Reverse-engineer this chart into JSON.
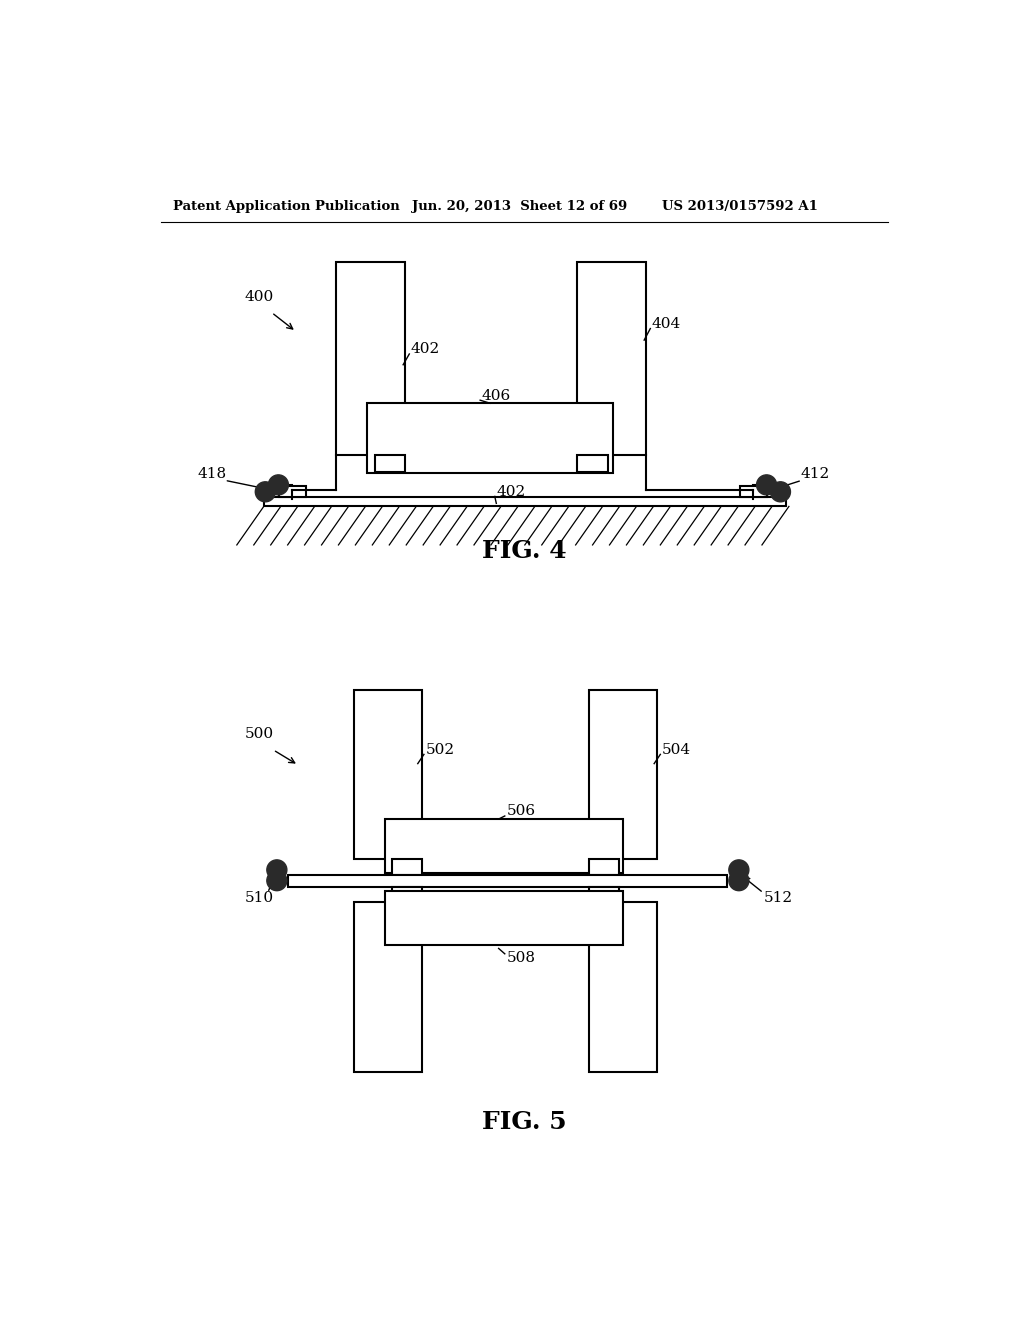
{
  "bg_color": "#ffffff",
  "header_left": "Patent Application Publication",
  "header_mid": "Jun. 20, 2013  Sheet 12 of 69",
  "header_right": "US 2013/0157592 A1",
  "fig4_label": "FIG. 4",
  "fig5_label": "FIG. 5"
}
